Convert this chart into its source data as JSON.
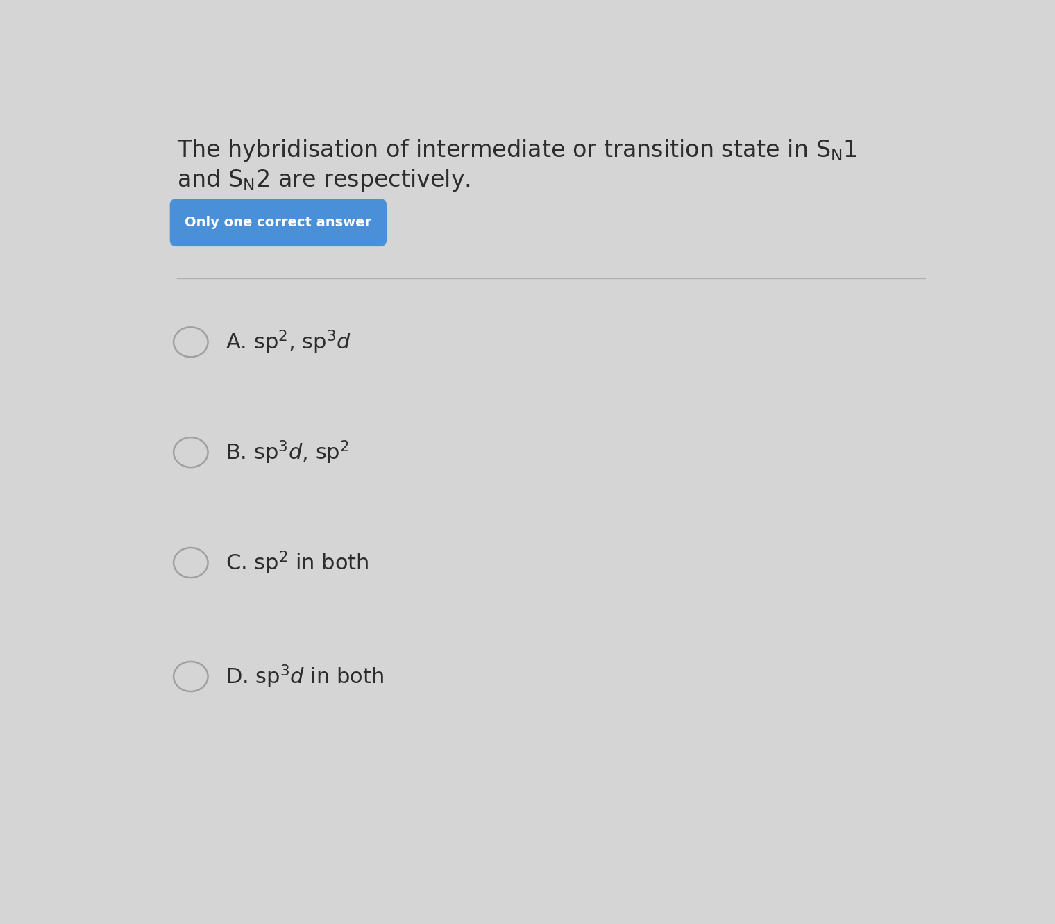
{
  "background_color": "#d5d5d5",
  "badge_text": "Only one correct answer",
  "badge_bg": "#4a90d9",
  "badge_text_color": "#ffffff",
  "divider_color": "#b0b0b0",
  "circle_color": "#a0a0a0",
  "text_color": "#2c2c2c",
  "option_fontsize": 22,
  "title_fontsize": 24,
  "badge_fontsize": 14
}
